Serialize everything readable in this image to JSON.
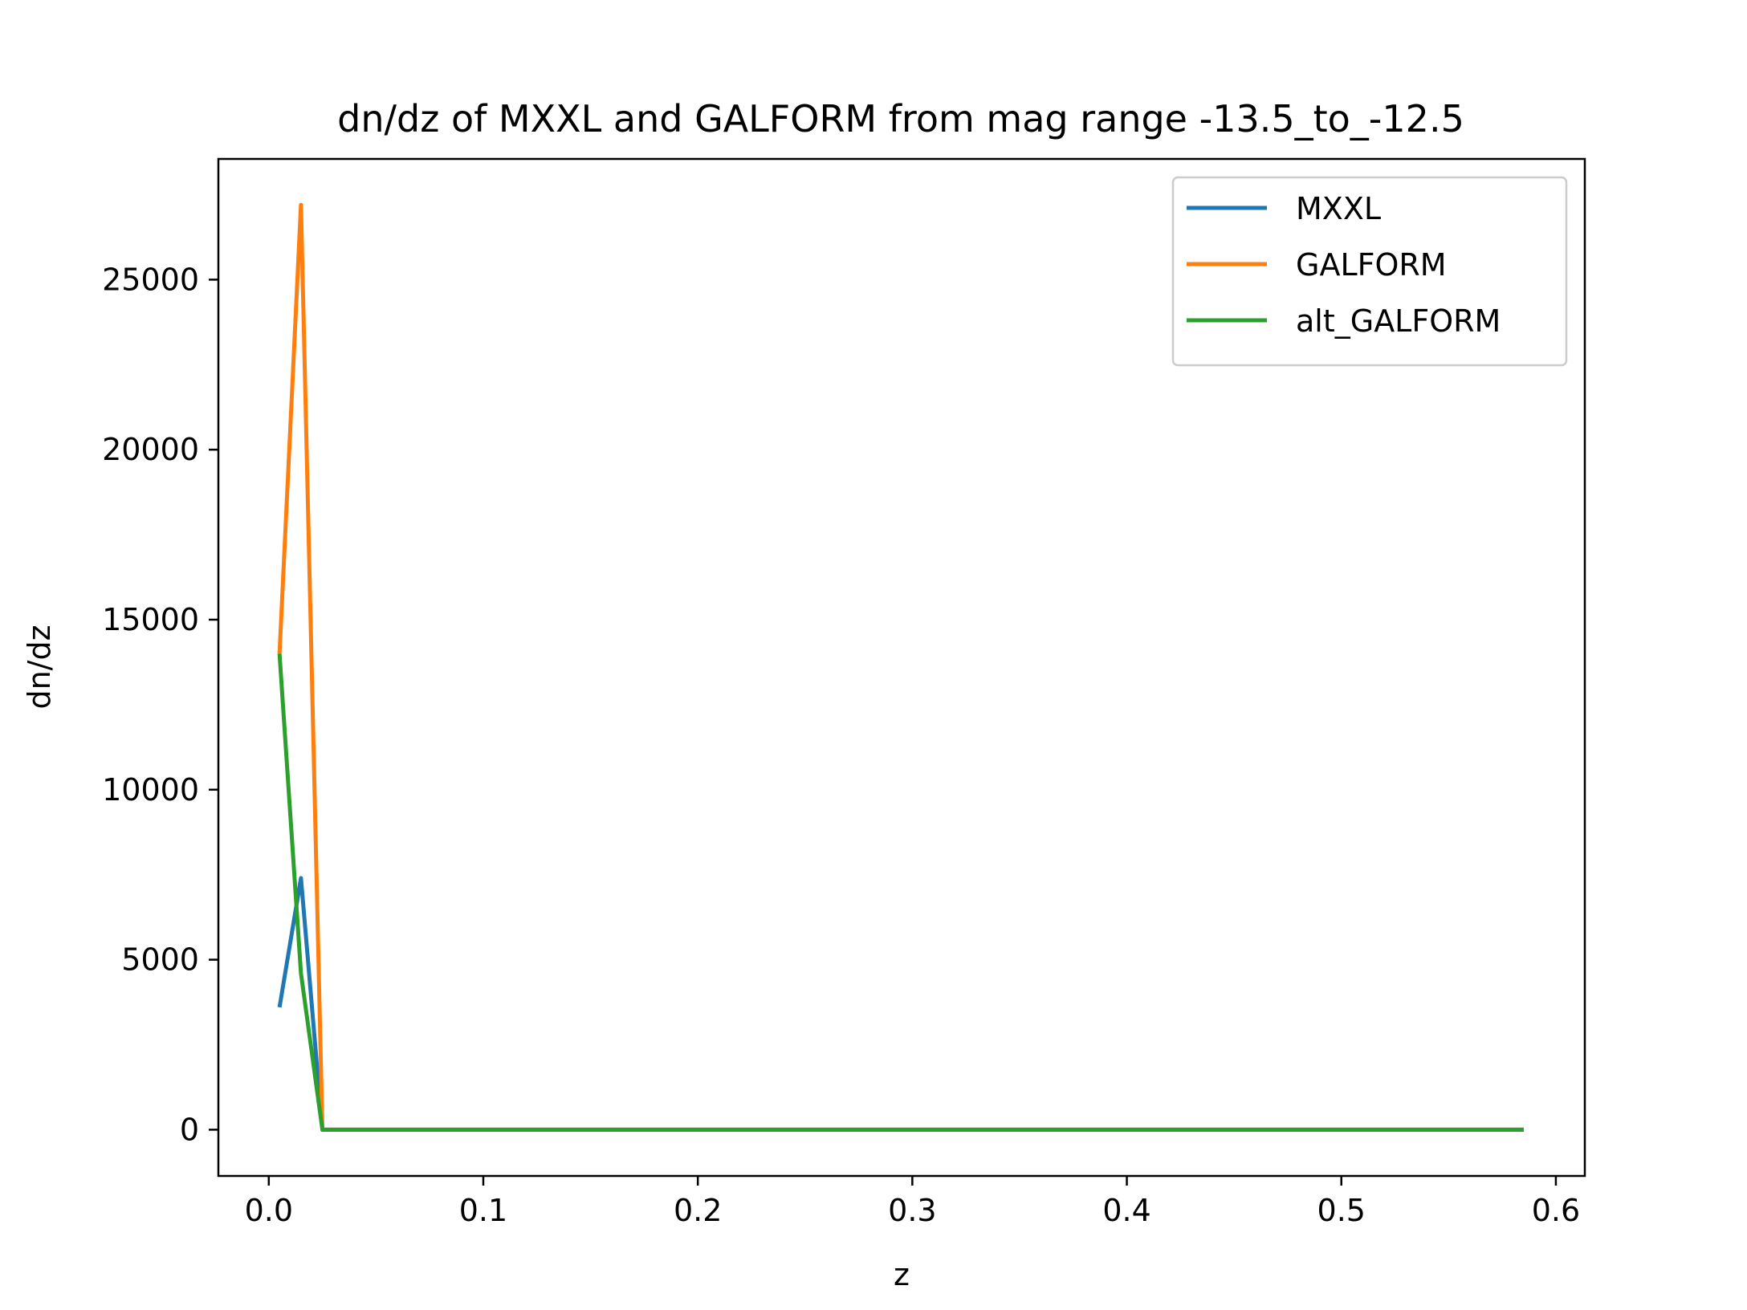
{
  "chart_data": {
    "type": "line",
    "title": "dn/dz of MXXL and GALFORM from mag range -13.5_to_-12.5",
    "xlabel": "z",
    "ylabel": "dn/dz",
    "xlim": [
      -0.0235,
      0.6135
    ],
    "ylim": [
      -1360,
      28550
    ],
    "xticks": [
      0.0,
      0.1,
      0.2,
      0.3,
      0.4,
      0.5,
      0.6
    ],
    "xtick_labels": [
      "0.0",
      "0.1",
      "0.2",
      "0.3",
      "0.4",
      "0.5",
      "0.6"
    ],
    "yticks": [
      0,
      5000,
      10000,
      15000,
      20000,
      25000
    ],
    "ytick_labels": [
      "0",
      "5000",
      "10000",
      "15000",
      "20000",
      "25000"
    ],
    "grid": false,
    "legend_position": "top-right",
    "series": [
      {
        "name": "MXXL",
        "color": "#1f77b4",
        "x": [
          0.005,
          0.015,
          0.025,
          0.035,
          0.045,
          0.055,
          0.065,
          0.075,
          0.085,
          0.095,
          0.105,
          0.115,
          0.125,
          0.135,
          0.145,
          0.155,
          0.165,
          0.175,
          0.185,
          0.195,
          0.205,
          0.215,
          0.225,
          0.235,
          0.245,
          0.255,
          0.265,
          0.275,
          0.285,
          0.295,
          0.305,
          0.315,
          0.325,
          0.335,
          0.345,
          0.355,
          0.365,
          0.375,
          0.385,
          0.395,
          0.405,
          0.415,
          0.425,
          0.435,
          0.445,
          0.455,
          0.465,
          0.475,
          0.485,
          0.495,
          0.505,
          0.515,
          0.525,
          0.535,
          0.545,
          0.555,
          0.565,
          0.575,
          0.585
        ],
        "y": [
          3600,
          7400,
          0,
          0,
          0,
          0,
          0,
          0,
          0,
          0,
          0,
          0,
          0,
          0,
          0,
          0,
          0,
          0,
          0,
          0,
          0,
          0,
          0,
          0,
          0,
          0,
          0,
          0,
          0,
          0,
          0,
          0,
          0,
          0,
          0,
          0,
          0,
          0,
          0,
          0,
          0,
          0,
          0,
          0,
          0,
          0,
          0,
          0,
          0,
          0,
          0,
          0,
          0,
          0,
          0,
          0,
          0,
          0,
          0
        ]
      },
      {
        "name": "GALFORM",
        "color": "#ff7f0e",
        "x": [
          0.005,
          0.015,
          0.025,
          0.035,
          0.045,
          0.055,
          0.065,
          0.075,
          0.085,
          0.095,
          0.105,
          0.115,
          0.125,
          0.135,
          0.145,
          0.155,
          0.165,
          0.175,
          0.185,
          0.195,
          0.205,
          0.215,
          0.225,
          0.235,
          0.245,
          0.255,
          0.265,
          0.275,
          0.285,
          0.295,
          0.305,
          0.315,
          0.325,
          0.335,
          0.345,
          0.355,
          0.365,
          0.375,
          0.385,
          0.395,
          0.405,
          0.415,
          0.425,
          0.435,
          0.445,
          0.455,
          0.465,
          0.475,
          0.485,
          0.495,
          0.505,
          0.515,
          0.525,
          0.535,
          0.545,
          0.555,
          0.565,
          0.575,
          0.585
        ],
        "y": [
          14000,
          27200,
          0,
          0,
          0,
          0,
          0,
          0,
          0,
          0,
          0,
          0,
          0,
          0,
          0,
          0,
          0,
          0,
          0,
          0,
          0,
          0,
          0,
          0,
          0,
          0,
          0,
          0,
          0,
          0,
          0,
          0,
          0,
          0,
          0,
          0,
          0,
          0,
          0,
          0,
          0,
          0,
          0,
          0,
          0,
          0,
          0,
          0,
          0,
          0,
          0,
          0,
          0,
          0,
          0,
          0,
          0,
          0,
          0
        ]
      },
      {
        "name": "alt_GALFORM",
        "color": "#2ca02c",
        "x": [
          0.005,
          0.015,
          0.025,
          0.035,
          0.045,
          0.055,
          0.065,
          0.075,
          0.085,
          0.095,
          0.105,
          0.115,
          0.125,
          0.135,
          0.145,
          0.155,
          0.165,
          0.175,
          0.185,
          0.195,
          0.205,
          0.215,
          0.225,
          0.235,
          0.245,
          0.255,
          0.265,
          0.275,
          0.285,
          0.295,
          0.305,
          0.315,
          0.325,
          0.335,
          0.345,
          0.355,
          0.365,
          0.375,
          0.385,
          0.395,
          0.405,
          0.415,
          0.425,
          0.435,
          0.445,
          0.455,
          0.465,
          0.475,
          0.485,
          0.495,
          0.505,
          0.515,
          0.525,
          0.535,
          0.545,
          0.555,
          0.565,
          0.575,
          0.585
        ],
        "y": [
          14000,
          4600,
          0,
          0,
          0,
          0,
          0,
          0,
          0,
          0,
          0,
          0,
          0,
          0,
          0,
          0,
          0,
          0,
          0,
          0,
          0,
          0,
          0,
          0,
          0,
          0,
          0,
          0,
          0,
          0,
          0,
          0,
          0,
          0,
          0,
          0,
          0,
          0,
          0,
          0,
          0,
          0,
          0,
          0,
          0,
          0,
          0,
          0,
          0,
          0,
          0,
          0,
          0,
          0,
          0,
          0,
          0,
          0,
          0
        ]
      }
    ]
  }
}
